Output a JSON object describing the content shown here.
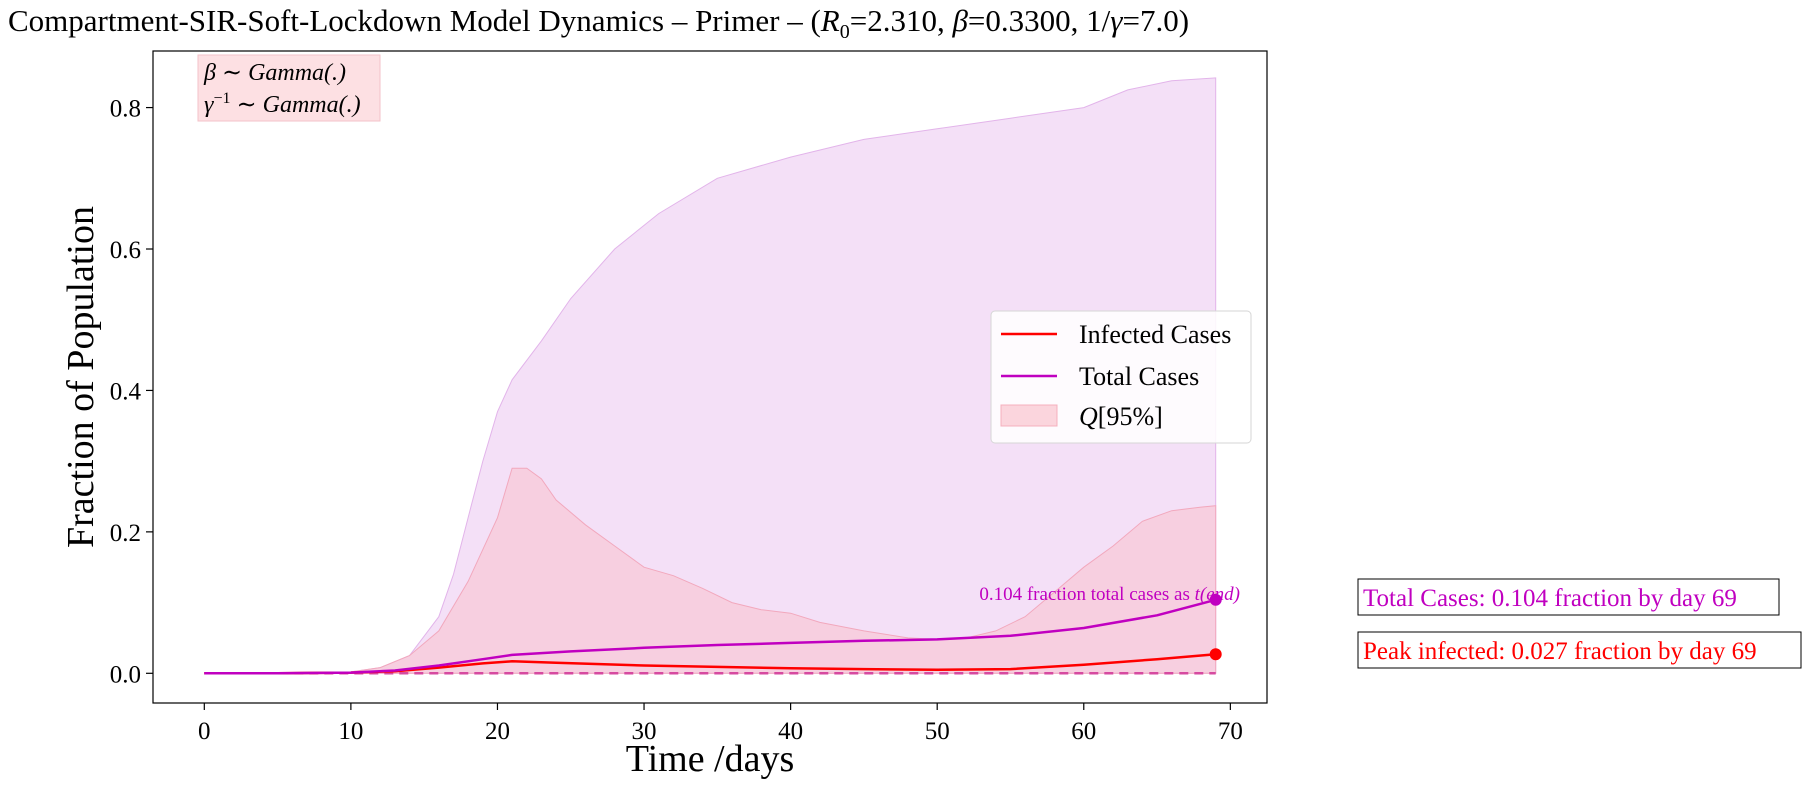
{
  "title": "Compartment-SIR-Soft-Lockdown Model Dynamics – Primer – (R0=2.310, β=0.3300, 1/γ=7.0)",
  "title_parts": {
    "prefix": "Compartment-SIR-Soft-Lockdown Model Dynamics – Primer – (",
    "r": "R",
    "r_sub": "0",
    "r_val": "=2.310, ",
    "beta": "β",
    "beta_val": "=0.3300, 1/",
    "gamma": "γ",
    "gamma_val": "=7.0)"
  },
  "prior_note": {
    "line1_sym": "β",
    "line1_text": " ∼ Gamma(.)",
    "line2_sym": "γ",
    "line2_sup": "−1",
    "line2_text": " ∼ Gamma(.)",
    "bg_color": "#fde0e3"
  },
  "side_labels": {
    "total": "Total Cases: 0.104 fraction by day 69",
    "peak": "Peak infected: 0.027 fraction by day 69"
  },
  "colors": {
    "infected": "#ff0000",
    "total": "#c000c0",
    "q95_band": "#f8c8d6",
    "total_band": "#eed0f2",
    "dashed": "#d64aa0"
  },
  "chart_data": {
    "type": "line",
    "xlabel": "Time /days",
    "ylabel": "Fraction of Population",
    "xlim": [
      -3.5,
      72.5
    ],
    "ylim": [
      -0.042,
      0.88
    ],
    "xticks": [
      0,
      10,
      20,
      30,
      40,
      50,
      60,
      70
    ],
    "yticks": [
      0.0,
      0.2,
      0.4,
      0.6,
      0.8
    ],
    "ytick_labels": [
      "0.0",
      "0.2",
      "0.4",
      "0.6",
      "0.8"
    ],
    "grid": false,
    "legend_position": "center-right",
    "legend": [
      "Infected Cases",
      "Total Cases",
      "Q[95%]"
    ],
    "legend_parts": {
      "q_symbol": "Q",
      "q_rest": "[95%]"
    },
    "series": [
      {
        "name": "Infected Cases",
        "x": [
          0,
          5,
          10,
          13,
          16,
          19,
          21,
          24,
          27,
          30,
          35,
          40,
          45,
          50,
          55,
          60,
          65,
          69
        ],
        "y": [
          0.0,
          0.0,
          0.001,
          0.003,
          0.008,
          0.014,
          0.017,
          0.015,
          0.013,
          0.011,
          0.009,
          0.007,
          0.006,
          0.005,
          0.006,
          0.012,
          0.02,
          0.027
        ]
      },
      {
        "name": "Total Cases",
        "x": [
          0,
          5,
          10,
          13,
          16,
          19,
          21,
          25,
          30,
          35,
          40,
          45,
          50,
          55,
          60,
          65,
          69
        ],
        "y": [
          0.0,
          0.0,
          0.001,
          0.004,
          0.011,
          0.02,
          0.026,
          0.031,
          0.036,
          0.04,
          0.043,
          0.046,
          0.048,
          0.053,
          0.064,
          0.082,
          0.104
        ]
      }
    ],
    "bands": [
      {
        "name": "Total Cases 95% band",
        "x": [
          0,
          10,
          12,
          14,
          16,
          17,
          18,
          19,
          20,
          21,
          23,
          25,
          28,
          31,
          35,
          40,
          45,
          50,
          55,
          60,
          63,
          66,
          69
        ],
        "upper": [
          0.0,
          0.002,
          0.008,
          0.025,
          0.08,
          0.14,
          0.22,
          0.3,
          0.37,
          0.415,
          0.47,
          0.53,
          0.6,
          0.65,
          0.7,
          0.73,
          0.755,
          0.77,
          0.785,
          0.8,
          0.825,
          0.838,
          0.842
        ],
        "lower": [
          0.0,
          0.0,
          0.0,
          0.0,
          0.0,
          0.0,
          0.0,
          0.0,
          0.0,
          0.0,
          0.0,
          0.0,
          0.0,
          0.0,
          0.0,
          0.0,
          0.0,
          0.0,
          0.0,
          0.0,
          0.0,
          0.0,
          0.0
        ]
      },
      {
        "name": "Q[95%]",
        "x": [
          0,
          10,
          12,
          14,
          16,
          18,
          20,
          21,
          22,
          23,
          24,
          26,
          28,
          30,
          32,
          34,
          36,
          38,
          40,
          42,
          45,
          48,
          50,
          52,
          54,
          56,
          58,
          60,
          62,
          64,
          66,
          68,
          69
        ],
        "upper": [
          0.0,
          0.002,
          0.008,
          0.025,
          0.06,
          0.13,
          0.22,
          0.29,
          0.29,
          0.275,
          0.245,
          0.21,
          0.18,
          0.15,
          0.138,
          0.12,
          0.1,
          0.09,
          0.085,
          0.072,
          0.06,
          0.05,
          0.048,
          0.05,
          0.06,
          0.08,
          0.115,
          0.15,
          0.18,
          0.215,
          0.23,
          0.235,
          0.237
        ],
        "lower": [
          0.0,
          0.0,
          0.0,
          0.0,
          0.0,
          0.0,
          0.0,
          0.0,
          0.0,
          0.0,
          0.0,
          0.0,
          0.0,
          0.0,
          0.0,
          0.0,
          0.0,
          0.0,
          0.0,
          0.0,
          0.0,
          0.0,
          0.0,
          0.0,
          0.0,
          0.0,
          0.0,
          0.0,
          0.0,
          0.0,
          0.0,
          0.0,
          0.0
        ]
      }
    ],
    "dashed_line": {
      "x": [
        0,
        69
      ],
      "y": [
        0.0,
        0.0
      ]
    },
    "endpoints": [
      {
        "series": "Infected Cases",
        "x": 69,
        "y": 0.027
      },
      {
        "series": "Total Cases",
        "x": 69,
        "y": 0.104
      }
    ],
    "annotation": {
      "text": "0.104 fraction total cases as ",
      "math": "t(end)",
      "x": 69,
      "y": 0.104
    }
  }
}
